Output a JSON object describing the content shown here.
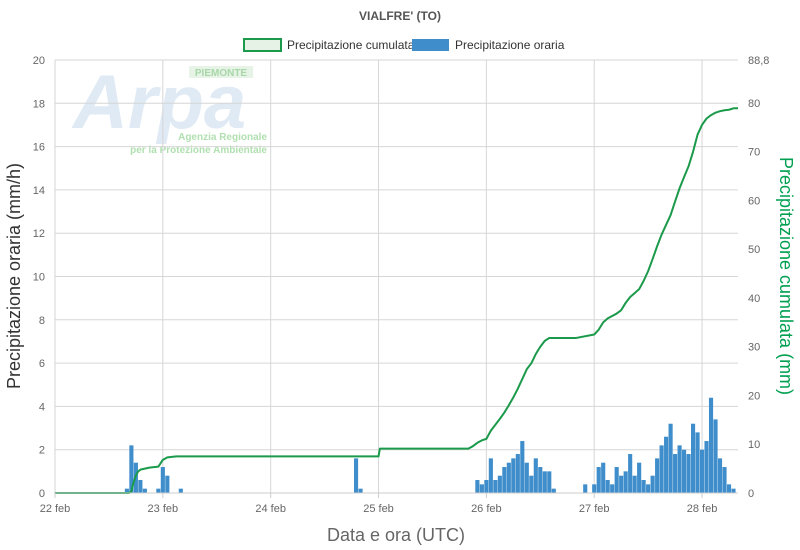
{
  "chart_data": {
    "type": "bar",
    "title": "VIALFRE' (TO)",
    "xlabel": "Data e ora (UTC)",
    "ylabel": "Precipitazione oraria (mm/h)",
    "y2label": "Precipitazione cumulata (mm)",
    "xlim_hours": [
      0,
      152
    ],
    "ylim": [
      0,
      20
    ],
    "y2lim": [
      0,
      88.8
    ],
    "x_tick_labels": [
      {
        "label": "22 feb",
        "hour": 0
      },
      {
        "label": "23 feb",
        "hour": 24
      },
      {
        "label": "24 feb",
        "hour": 48
      },
      {
        "label": "25 feb",
        "hour": 72
      },
      {
        "label": "26 feb",
        "hour": 96
      },
      {
        "label": "27 feb",
        "hour": 120
      },
      {
        "label": "28 feb",
        "hour": 144
      }
    ],
    "y_ticks": [
      "0",
      "2",
      "4",
      "6",
      "8",
      "10",
      "12",
      "14",
      "16",
      "18",
      "20"
    ],
    "y_tick_values": [
      0,
      2,
      4,
      6,
      8,
      10,
      12,
      14,
      16,
      18,
      20
    ],
    "y2_ticks": [
      "0",
      "10",
      "20",
      "30",
      "40",
      "50",
      "60",
      "70",
      "80",
      "88,8"
    ],
    "y2_tick_values": [
      0,
      10,
      20,
      30,
      40,
      50,
      60,
      70,
      80,
      88.8
    ],
    "series": [
      {
        "name": "Precipitazione cumulata",
        "type": "line",
        "axis": "right",
        "color": "#1a9a4a",
        "hours": [
          0,
          16.5,
          17,
          17.5,
          18,
          18.5,
          19,
          20,
          21,
          22,
          23,
          24,
          25,
          26,
          27,
          48,
          72,
          72.3,
          86,
          92,
          93,
          94,
          95,
          96,
          97,
          98,
          99,
          100,
          101,
          102,
          103,
          104,
          105,
          106,
          107,
          108,
          109,
          110,
          111,
          112,
          116,
          120,
          121,
          122,
          123,
          124,
          125,
          126,
          127,
          128,
          129,
          130,
          131,
          132,
          133,
          134,
          135,
          136,
          137,
          138,
          139,
          140,
          141,
          142,
          143,
          144,
          145,
          146,
          147,
          148,
          149,
          150,
          151,
          152
        ],
        "values": [
          0,
          0,
          0.4,
          2.2,
          3.6,
          4.4,
          4.8,
          5.0,
          5.2,
          5.3,
          5.4,
          6.8,
          7.3,
          7.4,
          7.5,
          7.5,
          7.5,
          9.1,
          9.1,
          9.1,
          9.6,
          10.3,
          10.8,
          11.1,
          12.8,
          14.0,
          15.2,
          16.5,
          18.0,
          19.6,
          21.4,
          23.4,
          25.4,
          26.6,
          28.5,
          30.0,
          31.2,
          31.8,
          31.8,
          31.8,
          31.8,
          32.5,
          33.5,
          35.0,
          35.8,
          36.3,
          36.8,
          37.5,
          39.0,
          40.2,
          41.0,
          41.8,
          43.5,
          45.5,
          48.0,
          50.6,
          53.0,
          55.0,
          57.0,
          59.8,
          62.5,
          64.8,
          67.0,
          70.0,
          73.5,
          75.5,
          76.8,
          77.5,
          78.0,
          78.3,
          78.5,
          78.6,
          78.9,
          78.9
        ]
      },
      {
        "name": "Precipitazione oraria",
        "type": "bar",
        "axis": "left",
        "color": "#3f8ecb",
        "hours": [
          16,
          17,
          18,
          19,
          20,
          23,
          24,
          25,
          28,
          67,
          68,
          94,
          95,
          96,
          97,
          98,
          99,
          100,
          101,
          102,
          103,
          104,
          105,
          106,
          107,
          108,
          109,
          110,
          111,
          118,
          120,
          121,
          122,
          123,
          124,
          125,
          126,
          127,
          128,
          129,
          130,
          131,
          132,
          133,
          134,
          135,
          136,
          137,
          138,
          139,
          140,
          141,
          142,
          143,
          144,
          145,
          146,
          147,
          148,
          149,
          150,
          151
        ],
        "values": [
          0.2,
          2.2,
          1.4,
          0.6,
          0.2,
          0.2,
          1.2,
          0.8,
          0.2,
          1.6,
          0.2,
          0.6,
          0.4,
          0.6,
          1.6,
          0.6,
          0.8,
          1.2,
          1.4,
          1.6,
          1.8,
          2.4,
          1.4,
          0.8,
          1.6,
          1.2,
          1.0,
          1.0,
          0.2,
          0.4,
          0.4,
          1.2,
          1.4,
          0.6,
          0.4,
          1.2,
          0.8,
          1.0,
          1.8,
          0.8,
          1.4,
          0.6,
          0.4,
          0.8,
          1.6,
          2.2,
          2.6,
          3.2,
          1.8,
          2.2,
          2.0,
          1.8,
          3.2,
          2.8,
          2.0,
          2.4,
          4.4,
          3.4,
          1.6,
          1.2,
          0.4,
          0.2
        ]
      }
    ],
    "legend": [
      {
        "label": "Precipitazione cumulata",
        "color": "#1a9a4a"
      },
      {
        "label": "Precipitazione oraria",
        "color": "#3f8ecb"
      }
    ],
    "legend_position": "top-center",
    "grid": true
  },
  "watermark": {
    "logo_text": "Arpa",
    "region_text": "PIEMONTE",
    "line1": "Agenzia Regionale",
    "line2": "per la Protezione Ambientale"
  }
}
